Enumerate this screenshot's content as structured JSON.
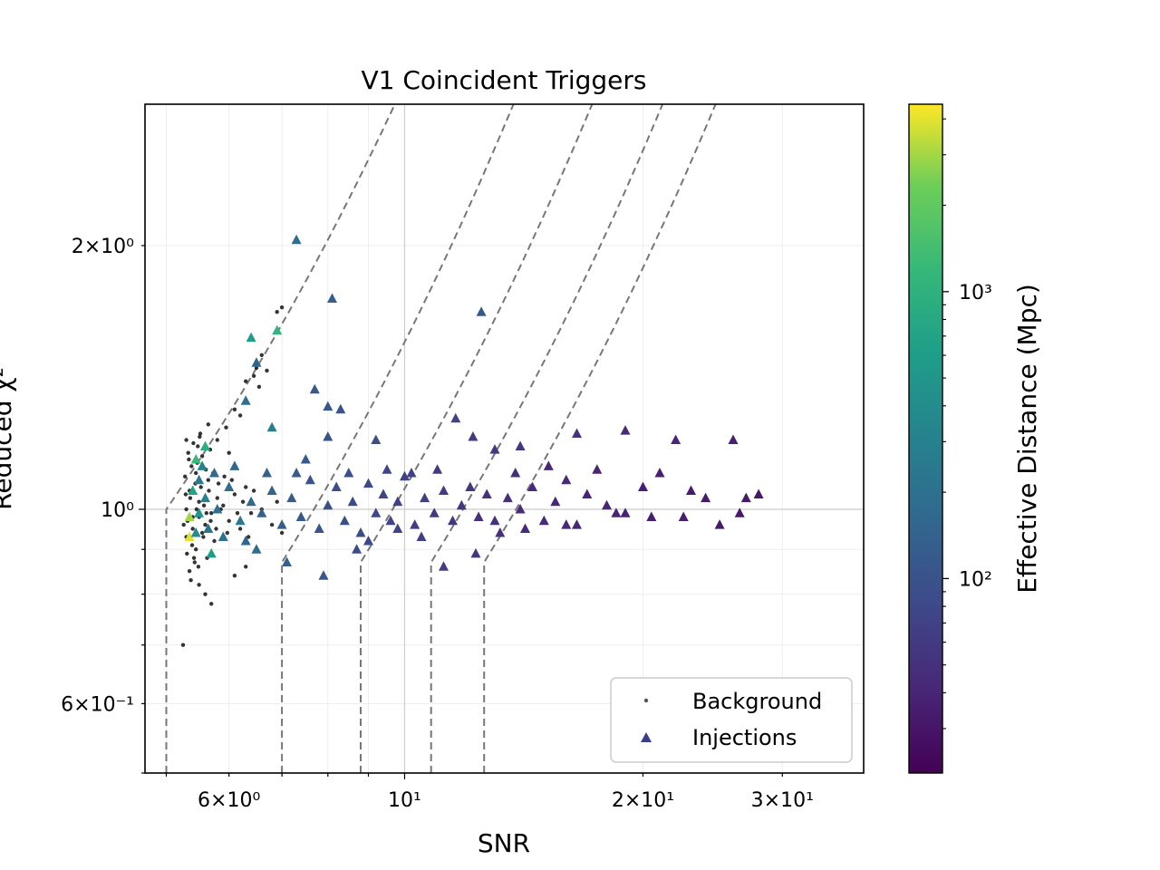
{
  "chart_data": {
    "type": "scatter",
    "title": "V1 Coincident Triggers",
    "xlabel": "SNR",
    "ylabel": "Reduced χ²",
    "xscale": "log",
    "yscale": "log",
    "xlim": [
      4.7,
      38
    ],
    "ylim": [
      0.5,
      2.9
    ],
    "grid": true,
    "legend_position": "lower-right",
    "x_tick_labels": [
      {
        "value": 6,
        "label": "6×10⁰"
      },
      {
        "value": 10,
        "label": "10¹"
      },
      {
        "value": 20,
        "label": "2×10¹"
      },
      {
        "value": 30,
        "label": "3×10¹"
      }
    ],
    "y_tick_labels": [
      {
        "value": 0.6,
        "label": "6×10⁻¹"
      },
      {
        "value": 1,
        "label": "10⁰"
      },
      {
        "value": 2,
        "label": "2×10⁰"
      }
    ],
    "colorbar": {
      "label": "Effective Distance (Mpc)",
      "scale": "log",
      "colormap": "viridis",
      "range": [
        21,
        4500
      ],
      "tick_labels": [
        {
          "value": 100,
          "label": "10²"
        },
        {
          "value": 1000,
          "label": "10³"
        }
      ]
    },
    "contour_lines": {
      "style": "dashed",
      "color": "#777777",
      "snr_start": [
        5.0,
        7.0,
        8.8,
        10.8,
        12.6
      ]
    },
    "series": [
      {
        "name": "Background",
        "marker": "dot",
        "color": "#000000",
        "points": [
          [
            5.25,
            0.7
          ],
          [
            5.3,
            0.93
          ],
          [
            5.35,
            1.05
          ],
          [
            5.4,
            0.98
          ],
          [
            5.45,
            1.1
          ],
          [
            5.3,
            1.2
          ],
          [
            5.5,
            1.02
          ],
          [
            5.6,
            0.96
          ],
          [
            5.42,
            0.88
          ],
          [
            5.55,
            1.15
          ],
          [
            5.7,
            0.99
          ],
          [
            5.8,
            1.03
          ],
          [
            5.65,
            1.08
          ],
          [
            5.75,
            0.92
          ],
          [
            5.9,
            1.01
          ],
          [
            6.0,
            0.97
          ],
          [
            6.1,
            1.04
          ],
          [
            6.2,
            0.95
          ],
          [
            6.3,
            1.06
          ],
          [
            6.4,
            0.99
          ],
          [
            5.35,
            0.85
          ],
          [
            5.5,
            0.82
          ],
          [
            5.6,
            0.8
          ],
          [
            5.7,
            0.78
          ],
          [
            5.45,
            0.9
          ],
          [
            5.55,
            0.94
          ],
          [
            5.38,
            1.12
          ],
          [
            5.48,
            1.18
          ],
          [
            5.52,
            1.22
          ],
          [
            5.65,
            1.25
          ],
          [
            5.8,
            1.2
          ],
          [
            6.0,
            1.16
          ],
          [
            6.1,
            1.3
          ],
          [
            6.3,
            1.4
          ],
          [
            6.5,
            1.45
          ],
          [
            6.6,
            1.5
          ],
          [
            6.9,
            1.68
          ],
          [
            7.0,
            1.7
          ],
          [
            6.45,
            1.42
          ],
          [
            6.7,
            1.44
          ],
          [
            6.55,
            1.38
          ],
          [
            6.2,
            1.28
          ],
          [
            5.95,
            1.24
          ],
          [
            6.6,
            1.0
          ],
          [
            6.8,
            0.96
          ],
          [
            6.9,
            1.02
          ],
          [
            7.0,
            0.94
          ],
          [
            6.5,
            0.9
          ],
          [
            6.3,
            0.86
          ],
          [
            6.1,
            0.84
          ],
          [
            5.3,
            1.0
          ],
          [
            5.32,
            0.97
          ],
          [
            5.36,
            1.03
          ],
          [
            5.4,
            0.95
          ],
          [
            5.44,
            1.07
          ],
          [
            5.46,
            1.0
          ],
          [
            5.5,
            0.98
          ],
          [
            5.58,
            1.01
          ],
          [
            5.62,
            0.99
          ],
          [
            5.66,
            1.05
          ],
          [
            5.28,
            1.09
          ],
          [
            5.34,
            1.14
          ],
          [
            5.39,
            0.91
          ],
          [
            5.43,
            0.87
          ],
          [
            5.47,
            1.13
          ],
          [
            5.53,
            1.06
          ],
          [
            5.57,
            0.93
          ],
          [
            5.61,
            1.11
          ],
          [
            5.69,
            0.97
          ],
          [
            5.73,
            1.1
          ],
          [
            5.78,
            0.95
          ],
          [
            5.82,
            1.07
          ],
          [
            5.86,
            1.0
          ],
          [
            5.92,
            1.09
          ],
          [
            5.97,
            0.94
          ],
          [
            6.05,
            1.08
          ],
          [
            6.15,
            0.99
          ],
          [
            6.25,
            1.02
          ],
          [
            6.35,
            0.93
          ],
          [
            6.45,
            1.05
          ],
          [
            5.26,
            0.96
          ],
          [
            5.29,
            1.04
          ],
          [
            5.31,
            0.89
          ],
          [
            5.33,
            1.16
          ],
          [
            5.37,
            0.83
          ],
          [
            5.41,
            1.19
          ],
          [
            5.49,
            0.86
          ],
          [
            5.51,
            1.21
          ],
          [
            5.63,
            0.88
          ],
          [
            5.68,
            1.17
          ]
        ]
      },
      {
        "name": "Injections",
        "marker": "triangle",
        "points": [
          [
            7.3,
            2.03,
            180
          ],
          [
            8.1,
            1.74,
            130
          ],
          [
            12.5,
            1.68,
            110
          ],
          [
            6.9,
            1.6,
            1100
          ],
          [
            6.4,
            1.57,
            600
          ],
          [
            6.5,
            1.47,
            150
          ],
          [
            7.7,
            1.37,
            110
          ],
          [
            8.0,
            1.31,
            110
          ],
          [
            8.3,
            1.3,
            100
          ],
          [
            6.3,
            1.33,
            200
          ],
          [
            6.8,
            1.24,
            300
          ],
          [
            11.6,
            1.27,
            70
          ],
          [
            12.2,
            1.21,
            60
          ],
          [
            19.0,
            1.23,
            45
          ],
          [
            22.0,
            1.2,
            40
          ],
          [
            26.0,
            1.2,
            35
          ],
          [
            16.5,
            1.22,
            50
          ],
          [
            14.0,
            1.18,
            55
          ],
          [
            13.0,
            1.17,
            60
          ],
          [
            9.2,
            1.2,
            90
          ],
          [
            8.0,
            1.21,
            100
          ],
          [
            7.5,
            1.14,
            120
          ],
          [
            5.6,
            1.18,
            900
          ],
          [
            5.45,
            1.14,
            1200
          ],
          [
            5.4,
            1.05,
            700
          ],
          [
            5.35,
            0.98,
            3000
          ],
          [
            5.35,
            0.93,
            4000
          ],
          [
            5.5,
            0.99,
            500
          ],
          [
            5.6,
            1.03,
            300
          ],
          [
            5.8,
            1.0,
            200
          ],
          [
            6.0,
            1.06,
            180
          ],
          [
            6.2,
            0.97,
            250
          ],
          [
            6.4,
            1.02,
            160
          ],
          [
            6.6,
            0.99,
            140
          ],
          [
            6.8,
            1.05,
            150
          ],
          [
            7.0,
            0.96,
            130
          ],
          [
            7.2,
            1.03,
            120
          ],
          [
            7.4,
            0.98,
            110
          ],
          [
            7.6,
            1.08,
            100
          ],
          [
            7.8,
            0.95,
            100
          ],
          [
            8.0,
            1.01,
            95
          ],
          [
            8.2,
            1.06,
            90
          ],
          [
            8.4,
            0.97,
            90
          ],
          [
            8.6,
            1.02,
            85
          ],
          [
            8.8,
            0.94,
            85
          ],
          [
            9.0,
            1.07,
            80
          ],
          [
            9.2,
            0.99,
            80
          ],
          [
            9.4,
            1.04,
            75
          ],
          [
            9.6,
            0.97,
            75
          ],
          [
            9.8,
            1.02,
            70
          ],
          [
            10.0,
            1.09,
            70
          ],
          [
            10.3,
            0.96,
            65
          ],
          [
            10.6,
            1.03,
            65
          ],
          [
            10.9,
            0.99,
            60
          ],
          [
            11.2,
            1.05,
            60
          ],
          [
            11.5,
            0.97,
            55
          ],
          [
            11.8,
            1.01,
            55
          ],
          [
            12.1,
            1.06,
            55
          ],
          [
            12.4,
            0.98,
            50
          ],
          [
            12.7,
            1.04,
            50
          ],
          [
            13.0,
            0.97,
            50
          ],
          [
            13.5,
            1.03,
            48
          ],
          [
            14.0,
            1.0,
            46
          ],
          [
            14.5,
            1.06,
            45
          ],
          [
            15.0,
            0.97,
            44
          ],
          [
            15.5,
            1.02,
            43
          ],
          [
            16.0,
            1.08,
            42
          ],
          [
            16.5,
            0.96,
            41
          ],
          [
            17.0,
            1.04,
            40
          ],
          [
            18.0,
            1.01,
            40
          ],
          [
            19.0,
            0.99,
            38
          ],
          [
            20.0,
            1.06,
            37
          ],
          [
            21.0,
            1.1,
            36
          ],
          [
            22.5,
            0.98,
            35
          ],
          [
            24.0,
            1.03,
            34
          ],
          [
            25.0,
            0.96,
            33
          ],
          [
            27.0,
            1.03,
            32
          ],
          [
            28.0,
            1.04,
            31
          ],
          [
            26.5,
            0.99,
            32
          ],
          [
            20.5,
            0.98,
            36
          ],
          [
            7.1,
            0.87,
            140
          ],
          [
            7.9,
            0.84,
            110
          ],
          [
            11.2,
            0.86,
            65
          ],
          [
            12.3,
            0.89,
            55
          ],
          [
            9.0,
            0.92,
            80
          ],
          [
            10.5,
            0.93,
            65
          ],
          [
            6.5,
            0.9,
            180
          ],
          [
            5.7,
            0.89,
            600
          ],
          [
            5.45,
            0.94,
            400
          ],
          [
            5.5,
            1.08,
            250
          ],
          [
            5.55,
            1.12,
            300
          ],
          [
            5.65,
            0.95,
            220
          ],
          [
            5.75,
            1.1,
            170
          ],
          [
            5.9,
            0.93,
            200
          ],
          [
            6.1,
            1.12,
            160
          ],
          [
            6.3,
            0.92,
            150
          ],
          [
            6.7,
            1.1,
            140
          ],
          [
            7.3,
            1.1,
            120
          ],
          [
            8.5,
            1.1,
            95
          ],
          [
            9.5,
            1.11,
            75
          ],
          [
            10.2,
            1.1,
            70
          ],
          [
            11.0,
            1.11,
            60
          ],
          [
            13.8,
            1.1,
            47
          ],
          [
            15.2,
            1.12,
            43
          ],
          [
            17.5,
            1.11,
            40
          ],
          [
            18.5,
            0.99,
            39
          ],
          [
            23.0,
            1.05,
            35
          ],
          [
            16.0,
            0.96,
            42
          ],
          [
            14.2,
            0.95,
            46
          ],
          [
            13.2,
            0.94,
            49
          ],
          [
            9.8,
            0.95,
            72
          ],
          [
            8.7,
            0.9,
            86
          ]
        ]
      }
    ],
    "legend": [
      {
        "label": "Background",
        "marker": "dot"
      },
      {
        "label": "Injections",
        "marker": "triangle"
      }
    ]
  }
}
